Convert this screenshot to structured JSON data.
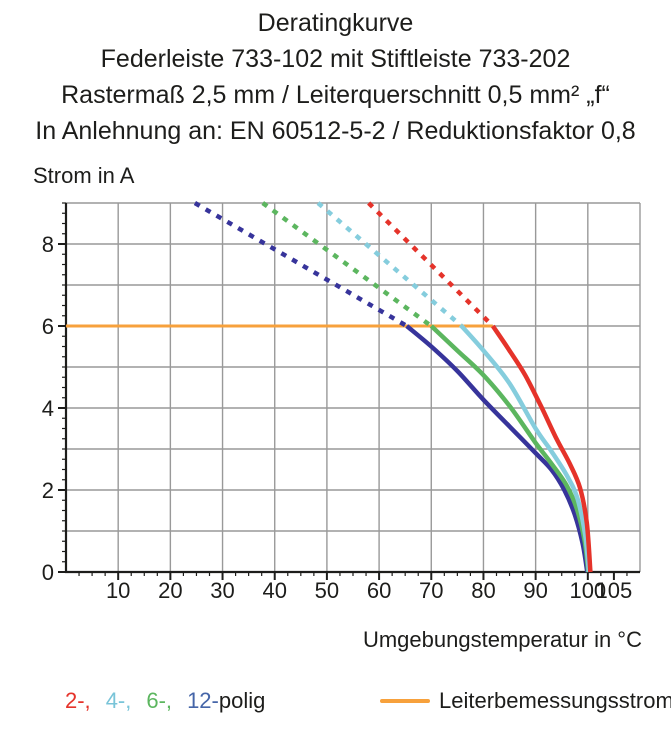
{
  "header": {
    "title_lines": [
      "Deratingkurve",
      "Federleiste 733-102 mit Stiftleiste 733-202",
      "Rastermaß 2,5 mm / Leiterquerschnitt 0,5 mm² „f“",
      "In Anlehnung an: EN 60512-5-2 / Reduktionsfaktor 0,8"
    ]
  },
  "chart_data": {
    "type": "line",
    "title": "Deratingkurve",
    "ylabel": "Strom in A",
    "xlabel": "Umgebungstemperatur in °C",
    "x_axis": {
      "min": 0,
      "max": 110,
      "tick_values": [
        10,
        20,
        30,
        40,
        50,
        60,
        70,
        80,
        90,
        100,
        105
      ],
      "tick_labels": [
        "10",
        "20",
        "30",
        "40",
        "50",
        "60",
        "70",
        "80",
        "90",
        "100",
        "105"
      ],
      "minor_step": 2.5,
      "grid_step": 10
    },
    "y_axis": {
      "min": 0,
      "max": 9,
      "tick_values": [
        0,
        2,
        4,
        6,
        8
      ],
      "tick_labels": [
        "0",
        "2",
        "4",
        "6",
        "8"
      ],
      "minor_step": 0.25,
      "grid_step": 1
    },
    "limit_line": {
      "label": "Leiterbemessungsstrom",
      "value": 6,
      "x_from": 0,
      "x_to": 81.8,
      "color": "#f7a13c"
    },
    "series": [
      {
        "name": "12-polig",
        "poles": 12,
        "color": "#37349b",
        "dashed_from": [
          24.7,
          9
        ],
        "points": [
          [
            65.3,
            6
          ],
          [
            70,
            5.5
          ],
          [
            75,
            4.9
          ],
          [
            80,
            4.2
          ],
          [
            85,
            3.55
          ],
          [
            90,
            2.9
          ],
          [
            93,
            2.5
          ],
          [
            95.5,
            2.0
          ],
          [
            97.5,
            1.4
          ],
          [
            99,
            0.7
          ],
          [
            99.9,
            0
          ]
        ]
      },
      {
        "name": "6-polig",
        "poles": 6,
        "color": "#5cb65f",
        "dashed_from": [
          37.7,
          9
        ],
        "points": [
          [
            70,
            6
          ],
          [
            75,
            5.4
          ],
          [
            80,
            4.8
          ],
          [
            85,
            4.05
          ],
          [
            90,
            3.15
          ],
          [
            93,
            2.65
          ],
          [
            96,
            2.1
          ],
          [
            98,
            1.5
          ],
          [
            99.4,
            0.75
          ],
          [
            100.1,
            0
          ]
        ]
      },
      {
        "name": "4-polig",
        "poles": 4,
        "color": "#85cddd",
        "dashed_from": [
          48.3,
          9
        ],
        "points": [
          [
            75.8,
            6
          ],
          [
            80,
            5.4
          ],
          [
            85,
            4.6
          ],
          [
            90,
            3.5
          ],
          [
            93,
            2.95
          ],
          [
            96,
            2.35
          ],
          [
            98,
            1.8
          ],
          [
            99.5,
            0.9
          ],
          [
            100.2,
            0
          ]
        ]
      },
      {
        "name": "2-polig",
        "poles": 2,
        "color": "#e5332a",
        "dashed_from": [
          58,
          9
        ],
        "points": [
          [
            81.8,
            6
          ],
          [
            85,
            5.4
          ],
          [
            88,
            4.8
          ],
          [
            91,
            4.05
          ],
          [
            94,
            3.25
          ],
          [
            96.5,
            2.65
          ],
          [
            98.5,
            2.05
          ],
          [
            99.8,
            1.2
          ],
          [
            100.5,
            0
          ]
        ]
      }
    ],
    "colors": {
      "grid": "#999999",
      "axis": "#1d1d1b",
      "text": "#1d1d1b"
    }
  },
  "legend": {
    "pole_items": [
      {
        "label": "2-,",
        "color": "#e5332a"
      },
      {
        "label": "4-,",
        "color": "#79c4d8"
      },
      {
        "label": "6-,",
        "color": "#5cb65f"
      },
      {
        "label": "12-",
        "color": "#4565a8"
      }
    ],
    "pole_suffix": "polig",
    "limit_label": "Leiterbemessungsstrom"
  }
}
